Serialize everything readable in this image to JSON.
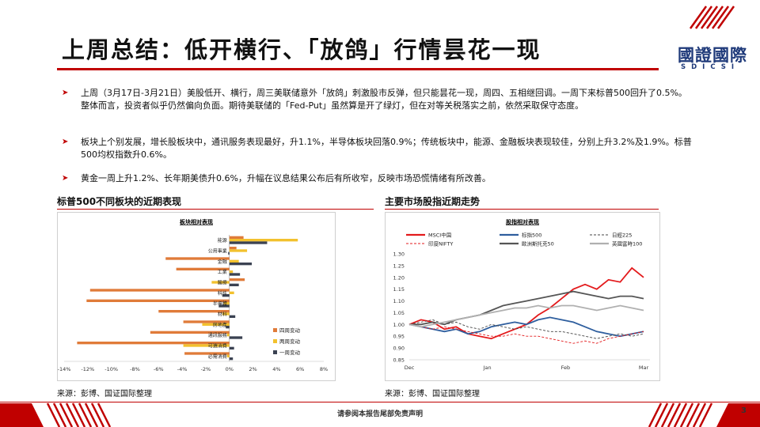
{
  "title": "上周总结：低开横行、「放鸽」行情昙花一现",
  "logo": {
    "main": "國證國際",
    "sub": "SDICSI"
  },
  "bullets": [
    "上周（3月17日-3月21日）美股低开、横行，周三美联储意外「放鸽」刺激股市反弹，但只能昙花一现，周四、五相继回调。一周下来标普500回升了0.5%。整体而言，投资者似乎仍然偏向负面。期待美联储的「Fed-Put」虽然算是开了绿灯，但在对等关税落实之前，依然采取保守态度。",
    "板块上个别发展，增长股板块中，通讯服务表现最好，升1.1%，半导体板块回落0.9%；传统板块中，能源、金融板块表现较佳，分别上升3.2%及1.9%。标普500均权指数升0.6%。",
    "黄金一周上升1.2%、长年期美债升0.6%，升幅在议息结果公布后有所收窄，反映市场恐慌情绪有所改善。"
  ],
  "left_section": {
    "heading": "标普500不同板块的近期表现",
    "source": "来源：彭博、国证国际整理"
  },
  "right_section": {
    "heading": "主要市场股指近期走势",
    "source": "来源：彭博、国证国际整理"
  },
  "footer": {
    "disclaimer": "请参阅本报告尾部免责声明",
    "page": "3"
  },
  "colors": {
    "brand_red": "#c00000",
    "brand_blue": "#1f3a7a"
  },
  "chart_data": [
    {
      "type": "bar",
      "orientation": "horizontal",
      "title": "板块相对表现",
      "categories": [
        "能源",
        "公用事業",
        "金融",
        "工業",
        "醫療",
        "科技",
        "半導體",
        "材料",
        "房地產",
        "通訊服務",
        "可選消費",
        "必需消費"
      ],
      "series": [
        {
          "name": "四周变动",
          "color": "#e07b39",
          "values": [
            1.2,
            0.6,
            -5.4,
            -4.5,
            1.3,
            -11.8,
            -12.1,
            -6.0,
            -3.9,
            -6.7,
            -12.9,
            -3.8
          ]
        },
        {
          "name": "两周变动",
          "color": "#f2c12e",
          "values": [
            5.8,
            1.5,
            0.8,
            0.3,
            -1.5,
            0.4,
            -0.5,
            -0.6,
            -2.3,
            -0.2,
            -3.9,
            -0.2
          ]
        },
        {
          "name": "一周变动",
          "color": "#3b4252",
          "values": [
            3.2,
            -0.1,
            1.9,
            0.9,
            0.8,
            -0.6,
            -0.9,
            0.5,
            -0.3,
            1.1,
            0.4,
            0.3
          ]
        }
      ],
      "x_ticks": [
        "-14%",
        "-12%",
        "-10%",
        "-8%",
        "-6%",
        "-4%",
        "-2%",
        "0%",
        "2%",
        "4%",
        "6%",
        "8%"
      ],
      "xlim": [
        -14,
        8
      ],
      "legend": "bottom-right"
    },
    {
      "type": "line",
      "title": "股指相对表现",
      "x_ticks": [
        "Dec",
        "Jan",
        "Feb",
        "Mar"
      ],
      "y_ticks": [
        "0.85",
        "0.90",
        "0.95",
        "1.00",
        "1.05",
        "1.10",
        "1.15",
        "1.20",
        "1.25",
        "1.30"
      ],
      "ylim": [
        0.85,
        1.3
      ],
      "legend": "top",
      "series": [
        {
          "name": "MSCI中国",
          "color": "#e31a1c",
          "dash": "solid",
          "values": [
            1.0,
            1.02,
            1.01,
            0.98,
            0.99,
            0.96,
            0.95,
            0.94,
            0.96,
            0.98,
            1.0,
            1.04,
            1.07,
            1.11,
            1.15,
            1.17,
            1.15,
            1.19,
            1.18,
            1.24,
            1.2
          ]
        },
        {
          "name": "标指500",
          "color": "#2e5e9e",
          "dash": "solid",
          "values": [
            1.0,
            0.99,
            0.98,
            0.97,
            0.98,
            0.96,
            0.97,
            0.99,
            1.0,
            1.01,
            1.0,
            1.02,
            1.03,
            1.02,
            1.01,
            0.99,
            0.97,
            0.96,
            0.95,
            0.96,
            0.97
          ]
        },
        {
          "name": "日經225",
          "color": "#444444",
          "dash": "dash",
          "values": [
            1.0,
            1.01,
            1.02,
            1.0,
            1.01,
            0.99,
            0.98,
            1.0,
            0.99,
            0.98,
            0.99,
            0.98,
            0.97,
            0.97,
            0.96,
            0.95,
            0.94,
            0.95,
            0.96,
            0.95,
            0.96
          ]
        },
        {
          "name": "印度NIFTY",
          "color": "#e31a1c",
          "dash": "dash",
          "values": [
            1.0,
            0.99,
            0.98,
            0.99,
            0.98,
            0.97,
            0.96,
            0.95,
            0.95,
            0.96,
            0.95,
            0.95,
            0.94,
            0.93,
            0.92,
            0.93,
            0.92,
            0.94,
            0.95,
            0.96,
            0.97
          ]
        },
        {
          "name": "歐洲斯托克50",
          "color": "#555555",
          "dash": "solid",
          "values": [
            1.0,
            1.0,
            1.01,
            1.0,
            1.02,
            1.03,
            1.04,
            1.06,
            1.08,
            1.09,
            1.1,
            1.11,
            1.12,
            1.13,
            1.14,
            1.13,
            1.12,
            1.11,
            1.12,
            1.12,
            1.11
          ]
        },
        {
          "name": "英國富時100",
          "color": "#b0b0b0",
          "dash": "solid",
          "values": [
            1.0,
            0.99,
            1.0,
            1.01,
            1.02,
            1.03,
            1.04,
            1.05,
            1.06,
            1.07,
            1.07,
            1.08,
            1.07,
            1.08,
            1.08,
            1.07,
            1.06,
            1.07,
            1.08,
            1.07,
            1.06
          ]
        }
      ]
    }
  ]
}
